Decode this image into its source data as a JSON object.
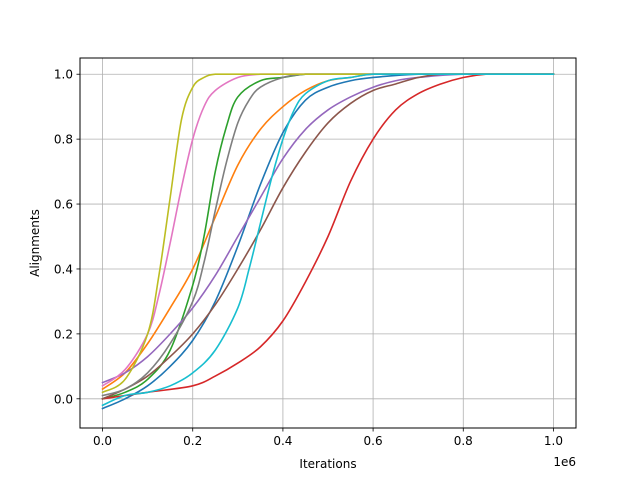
{
  "chart_data": {
    "type": "line",
    "title": "",
    "xlabel": "Iterations",
    "ylabel": "Alignments",
    "x_offset_label": "1e6",
    "xlim": [
      -0.05,
      1.05
    ],
    "ylim": [
      -0.09,
      1.05
    ],
    "grid": true,
    "legend": "none",
    "x_ticks": [
      0.0,
      0.2,
      0.4,
      0.6,
      0.8,
      1.0
    ],
    "x_tick_labels": [
      "0.0",
      "0.2",
      "0.4",
      "0.6",
      "0.8",
      "1.0"
    ],
    "y_ticks": [
      0.0,
      0.2,
      0.4,
      0.6,
      0.8,
      1.0
    ],
    "y_tick_labels": [
      "0.0",
      "0.2",
      "0.4",
      "0.6",
      "0.8",
      "1.0"
    ],
    "series": [
      {
        "color": "#1f77b4",
        "x": [
          0,
          0.05,
          0.1,
          0.15,
          0.2,
          0.25,
          0.3,
          0.35,
          0.4,
          0.45,
          0.5,
          0.55,
          0.6,
          0.7,
          0.8,
          1.0
        ],
        "y": [
          -0.03,
          0.0,
          0.04,
          0.1,
          0.18,
          0.3,
          0.47,
          0.66,
          0.82,
          0.92,
          0.96,
          0.98,
          0.99,
          1.0,
          1.0,
          1.0
        ]
      },
      {
        "color": "#ff7f0e",
        "x": [
          0,
          0.05,
          0.1,
          0.15,
          0.2,
          0.25,
          0.3,
          0.35,
          0.4,
          0.45,
          0.5,
          0.55,
          0.6,
          0.7,
          0.8,
          1.0
        ],
        "y": [
          0.03,
          0.08,
          0.17,
          0.28,
          0.4,
          0.56,
          0.72,
          0.83,
          0.9,
          0.95,
          0.98,
          0.99,
          1.0,
          1.0,
          1.0,
          1.0
        ]
      },
      {
        "color": "#2ca02c",
        "x": [
          0,
          0.05,
          0.1,
          0.15,
          0.2,
          0.225,
          0.25,
          0.275,
          0.3,
          0.35,
          0.4,
          0.45,
          0.5,
          0.6,
          0.8,
          1.0
        ],
        "y": [
          0.0,
          0.02,
          0.06,
          0.15,
          0.35,
          0.5,
          0.7,
          0.84,
          0.93,
          0.98,
          0.99,
          1.0,
          1.0,
          1.0,
          1.0,
          1.0
        ]
      },
      {
        "color": "#d62728",
        "x": [
          0,
          0.1,
          0.2,
          0.25,
          0.3,
          0.35,
          0.4,
          0.45,
          0.5,
          0.55,
          0.6,
          0.65,
          0.7,
          0.75,
          0.8,
          0.85,
          0.9,
          1.0
        ],
        "y": [
          0.0,
          0.02,
          0.04,
          0.07,
          0.11,
          0.16,
          0.24,
          0.36,
          0.5,
          0.67,
          0.8,
          0.89,
          0.94,
          0.97,
          0.99,
          1.0,
          1.0,
          1.0
        ]
      },
      {
        "color": "#9467bd",
        "x": [
          0,
          0.05,
          0.1,
          0.15,
          0.2,
          0.25,
          0.3,
          0.35,
          0.4,
          0.45,
          0.5,
          0.55,
          0.6,
          0.65,
          0.7,
          0.8,
          1.0
        ],
        "y": [
          0.05,
          0.08,
          0.13,
          0.2,
          0.28,
          0.38,
          0.5,
          0.62,
          0.74,
          0.83,
          0.89,
          0.93,
          0.96,
          0.98,
          0.99,
          1.0,
          1.0
        ]
      },
      {
        "color": "#8c564b",
        "x": [
          0,
          0.05,
          0.1,
          0.15,
          0.2,
          0.25,
          0.3,
          0.35,
          0.4,
          0.45,
          0.5,
          0.55,
          0.6,
          0.65,
          0.7,
          0.75,
          0.8,
          1.0
        ],
        "y": [
          0.0,
          0.03,
          0.07,
          0.13,
          0.2,
          0.29,
          0.4,
          0.52,
          0.65,
          0.76,
          0.85,
          0.91,
          0.95,
          0.97,
          0.99,
          1.0,
          1.0,
          1.0
        ]
      },
      {
        "color": "#e377c2",
        "x": [
          0,
          0.05,
          0.1,
          0.125,
          0.15,
          0.175,
          0.2,
          0.225,
          0.25,
          0.3,
          0.35,
          0.4,
          0.5,
          0.7,
          1.0
        ],
        "y": [
          0.04,
          0.09,
          0.2,
          0.32,
          0.48,
          0.65,
          0.8,
          0.9,
          0.95,
          0.99,
          1.0,
          1.0,
          1.0,
          1.0,
          1.0
        ]
      },
      {
        "color": "#7f7f7f",
        "x": [
          0,
          0.05,
          0.1,
          0.15,
          0.2,
          0.225,
          0.25,
          0.275,
          0.3,
          0.325,
          0.35,
          0.4,
          0.45,
          0.5,
          0.6,
          0.8,
          1.0
        ],
        "y": [
          0.01,
          0.03,
          0.08,
          0.17,
          0.3,
          0.42,
          0.58,
          0.73,
          0.85,
          0.92,
          0.96,
          0.99,
          1.0,
          1.0,
          1.0,
          1.0,
          1.0
        ]
      },
      {
        "color": "#bcbd22",
        "x": [
          0,
          0.05,
          0.1,
          0.125,
          0.15,
          0.175,
          0.2,
          0.225,
          0.25,
          0.3,
          0.4,
          0.6,
          1.0
        ],
        "y": [
          0.02,
          0.06,
          0.2,
          0.38,
          0.62,
          0.86,
          0.96,
          0.99,
          1.0,
          1.0,
          1.0,
          1.0,
          1.0
        ]
      },
      {
        "color": "#17becf",
        "x": [
          0,
          0.05,
          0.1,
          0.15,
          0.2,
          0.25,
          0.3,
          0.325,
          0.35,
          0.375,
          0.4,
          0.425,
          0.45,
          0.5,
          0.55,
          0.6,
          0.7,
          1.0
        ],
        "y": [
          -0.02,
          0.01,
          0.02,
          0.04,
          0.08,
          0.15,
          0.28,
          0.4,
          0.54,
          0.68,
          0.8,
          0.89,
          0.94,
          0.98,
          0.99,
          1.0,
          1.0,
          1.0
        ]
      }
    ]
  }
}
